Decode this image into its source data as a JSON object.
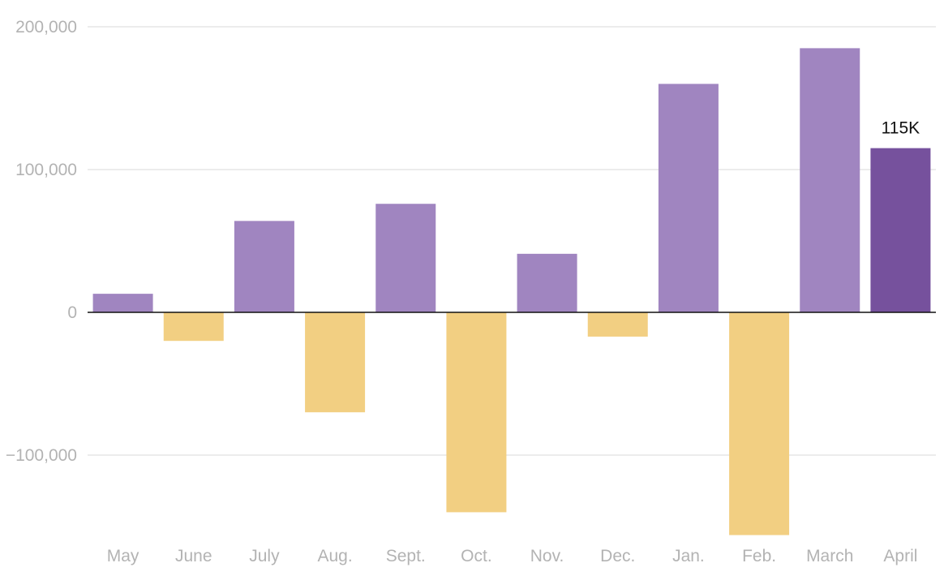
{
  "chart_data": {
    "type": "bar",
    "title": "",
    "xlabel": "",
    "ylabel": "",
    "categories": [
      "May",
      "June",
      "July",
      "Aug.",
      "Sept.",
      "Oct.",
      "Nov.",
      "Dec.",
      "Jan.",
      "Feb.",
      "March",
      "April"
    ],
    "values": [
      13000,
      -20000,
      64000,
      -70000,
      76000,
      -140000,
      41000,
      -17000,
      160000,
      -156000,
      185000,
      115000
    ],
    "ylim": [
      -160000,
      200000
    ],
    "yticks": [
      200000,
      100000,
      0,
      -100000
    ],
    "ytick_labels": [
      "200,000",
      "100,000",
      "0",
      "−100,000"
    ],
    "grid": true,
    "legend": "none",
    "colors": {
      "positive": "#a085c0",
      "negative": "#f2cf82",
      "highlight": "#76519d"
    },
    "highlight_index": 11,
    "annotations": [
      {
        "category": "April",
        "text": "115K"
      }
    ]
  }
}
